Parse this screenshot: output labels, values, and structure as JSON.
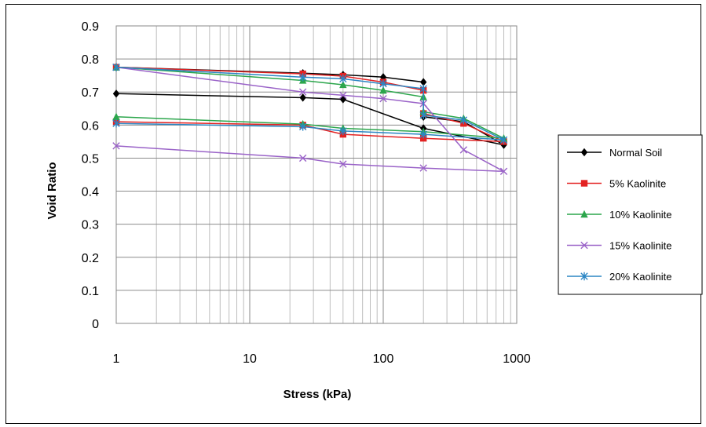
{
  "chart_data": {
    "type": "scatter",
    "title": "",
    "xlabel": "Stress (kPa)",
    "ylabel": "Void Ratio",
    "xscale": "log",
    "xlim": [
      1,
      1000
    ],
    "ylim": [
      0,
      0.9
    ],
    "xticks": [
      "1",
      "10",
      "100",
      "1000"
    ],
    "yticks": [
      "0",
      "0.1",
      "0.2",
      "0.3",
      "0.4",
      "0.5",
      "0.6",
      "0.7",
      "0.8",
      "0.9"
    ],
    "grid": true,
    "legend_position": "right",
    "series": [
      {
        "name": "Normal Soil",
        "color": "#000000",
        "marker": "diamond",
        "x": [
          1,
          25,
          50,
          100,
          200,
          200,
          400,
          800,
          200,
          50,
          25,
          1
        ],
        "y": [
          0.775,
          0.757,
          0.752,
          0.745,
          0.73,
          0.625,
          0.61,
          0.54,
          0.59,
          0.678,
          0.683,
          0.695
        ]
      },
      {
        "name": "5% Kaolinite",
        "color": "#e32222",
        "marker": "square",
        "x": [
          1,
          25,
          50,
          100,
          200,
          200,
          400,
          800,
          200,
          50,
          25,
          1
        ],
        "y": [
          0.775,
          0.755,
          0.748,
          0.73,
          0.705,
          0.635,
          0.605,
          0.55,
          0.56,
          0.572,
          0.6,
          0.61
        ]
      },
      {
        "name": "10% Kaolinite",
        "color": "#2ca64c",
        "marker": "triangle",
        "x": [
          1,
          25,
          50,
          100,
          200,
          200,
          400,
          800,
          200,
          50,
          25,
          1
        ],
        "y": [
          0.775,
          0.735,
          0.722,
          0.705,
          0.685,
          0.64,
          0.62,
          0.56,
          0.58,
          0.59,
          0.603,
          0.625
        ]
      },
      {
        "name": "15% Kaolinite",
        "color": "#9a63c8",
        "marker": "x",
        "x": [
          1,
          25,
          50,
          100,
          200,
          400,
          800,
          200,
          50,
          25,
          1
        ],
        "y": [
          0.775,
          0.7,
          0.69,
          0.68,
          0.665,
          0.525,
          0.46,
          0.47,
          0.482,
          0.5,
          0.537
        ]
      },
      {
        "name": "20% Kaolinite",
        "color": "#2c86c4",
        "marker": "star",
        "x": [
          1,
          25,
          50,
          100,
          200,
          200,
          400,
          800,
          200,
          50,
          25,
          1
        ],
        "y": [
          0.775,
          0.745,
          0.74,
          0.725,
          0.71,
          0.63,
          0.615,
          0.555,
          0.572,
          0.582,
          0.595,
          0.605
        ]
      }
    ]
  }
}
